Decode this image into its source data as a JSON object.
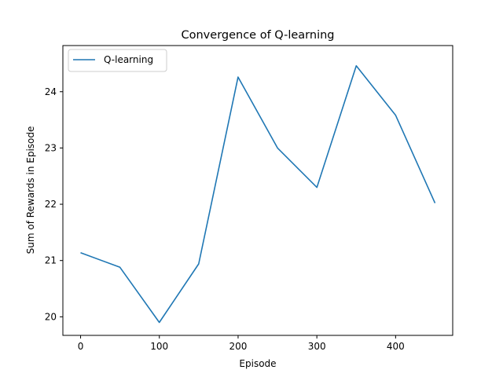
{
  "chart_data": {
    "type": "line",
    "title": "Convergence of Q-learning",
    "xlabel": "Episode",
    "ylabel": "Sum of Rewards in Episode",
    "xlim": [
      -22.5,
      472.5
    ],
    "ylim": [
      19.67,
      24.82
    ],
    "xticks": [
      0,
      100,
      200,
      300,
      400
    ],
    "yticks": [
      20,
      21,
      22,
      23,
      24
    ],
    "grid": false,
    "legend_position": "top-left",
    "series": [
      {
        "name": "Q-learning",
        "color": "#1f77b4",
        "x": [
          0,
          50,
          100,
          150,
          200,
          250,
          300,
          350,
          400,
          450
        ],
        "y": [
          21.14,
          20.88,
          19.9,
          20.94,
          24.26,
          23.0,
          22.3,
          24.46,
          23.58,
          22.02
        ]
      }
    ]
  }
}
